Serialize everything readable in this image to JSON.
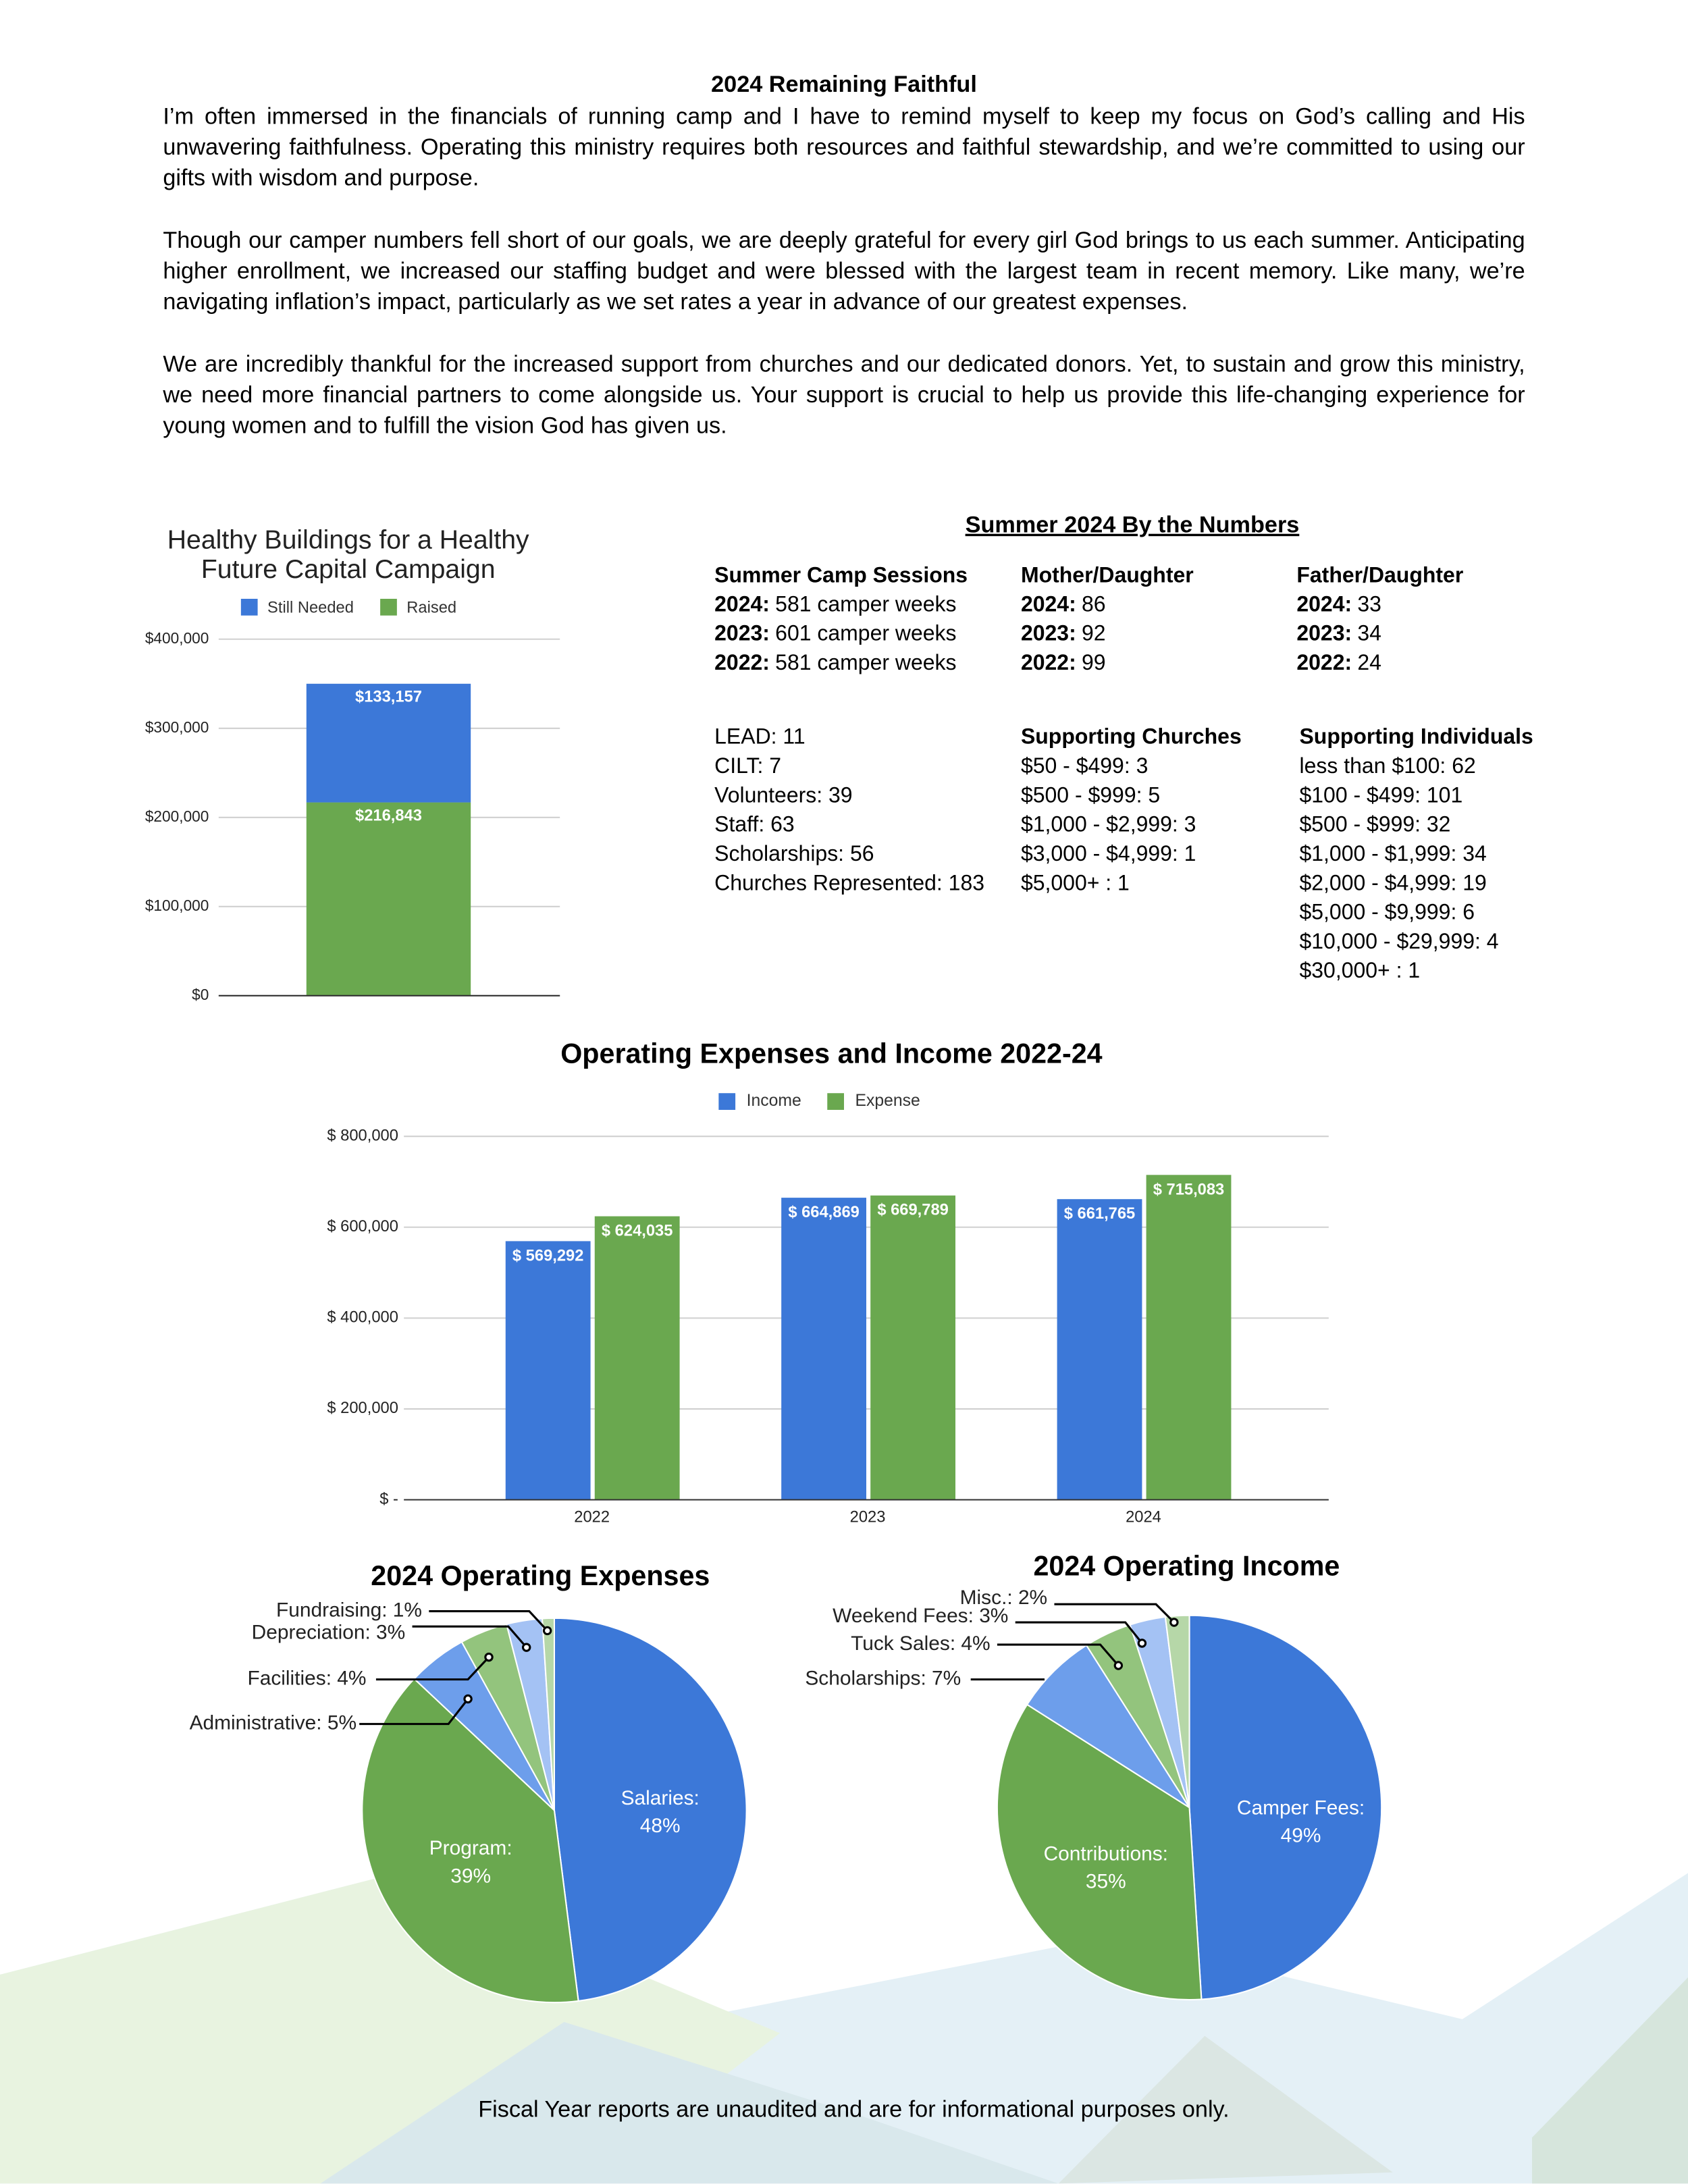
{
  "title": "2024 Remaining Faithful",
  "paragraphs": [
    "I’m often immersed in the financials of running camp and I have to remind myself to keep my focus on God’s calling and His unwavering faithfulness. Operating this ministry requires both resources and faithful stewardship, and we’re committed to using our gifts with wisdom and purpose.",
    "Though our camper numbers fell short of our goals, we are deeply grateful for every girl God brings to us each summer. Anticipating higher enrollment, we increased our staffing budget and were blessed with the largest team in recent memory. Like many, we’re navigating inflation’s impact, particularly as we set rates a year in advance of our greatest expenses.",
    "We are incredibly thankful for the increased support from churches and our dedicated donors. Yet, to sustain and grow this ministry, we need more financial partners to come alongside us. Your support is crucial to help us provide this life-changing experience for young women and to fulfill the vision God has given us."
  ],
  "numbers": {
    "title": "Summer 2024 By the Numbers",
    "columns": [
      {
        "heading": "Summer Camp Sessions",
        "rows": [
          {
            "label": "2024:",
            "text": "581 camper weeks"
          },
          {
            "label": "2023:",
            "text": "601 camper weeks"
          },
          {
            "label": "2022:",
            "text": "581 camper weeks"
          }
        ]
      },
      {
        "heading": "Mother/Daughter",
        "rows": [
          {
            "label": "2024:",
            "text": "86"
          },
          {
            "label": "2023:",
            "text": "92"
          },
          {
            "label": "2022:",
            "text": "99"
          }
        ]
      },
      {
        "heading": "Father/Daughter",
        "rows": [
          {
            "label": "2024:",
            "text": "33"
          },
          {
            "label": "2023:",
            "text": "34"
          },
          {
            "label": "2022:",
            "text": "24"
          }
        ]
      }
    ],
    "lists": [
      {
        "rows": [
          "LEAD: 11",
          "CILT: 7",
          "Volunteers: 39",
          "Staff: 63",
          "Scholarships: 56",
          "Churches Represented: 183"
        ]
      },
      {
        "heading": "Supporting Churches",
        "rows": [
          "$50 - $499: 3",
          "$500 - $999: 5",
          "$1,000 - $2,999: 3",
          "$3,000 - $4,999: 1",
          "$5,000+ : 1"
        ]
      },
      {
        "heading": "Supporting Individuals",
        "rows": [
          "less than $100: 62",
          "$100 - $499: 101",
          "$500 - $999: 32",
          "$1,000 - $1,999: 34",
          "$2,000 - $4,999: 19",
          "$5,000 - $9,999: 6",
          "$10,000 - $29,999: 4",
          "$30,000+ : 1"
        ]
      }
    ]
  },
  "chart_data": [
    {
      "type": "stacked-bar",
      "title": "Healthy Buildings for a Healthy Future Capital Campaign",
      "categories": [
        null
      ],
      "series": [
        {
          "name": "Still Needed",
          "color": "#3c78d8",
          "values": [
            133157
          ],
          "value_labels": [
            "$133,157"
          ]
        },
        {
          "name": "Raised",
          "color": "#6aa84f",
          "values": [
            216843
          ],
          "value_labels": [
            "$216,843"
          ]
        }
      ],
      "ylim": [
        0,
        400000
      ],
      "yticks": [
        {
          "value": 0,
          "label": "$0"
        },
        {
          "value": 100000,
          "label": "$100,000"
        },
        {
          "value": 200000,
          "label": "$200,000"
        },
        {
          "value": 300000,
          "label": "$300,000"
        },
        {
          "value": 400000,
          "label": "$400,000"
        }
      ],
      "grid": true,
      "legend": "top"
    },
    {
      "type": "bar",
      "title": "Operating Expenses and Income 2022-24",
      "categories": [
        "2022",
        "2023",
        "2024"
      ],
      "series": [
        {
          "name": "Income",
          "color": "#3c78d8",
          "values": [
            569292,
            664869,
            661765
          ],
          "value_labels": [
            "$ 569,292",
            "$ 664,869",
            "$ 661,765"
          ]
        },
        {
          "name": "Expense",
          "color": "#6aa84f",
          "values": [
            624035,
            669789,
            715083
          ],
          "value_labels": [
            "$ 624,035",
            "$ 669,789",
            "$ 715,083"
          ]
        }
      ],
      "ylim": [
        0,
        800000
      ],
      "yticks": [
        {
          "value": 0,
          "label": "$ -"
        },
        {
          "value": 200000,
          "label": "$ 200,000"
        },
        {
          "value": 400000,
          "label": "$ 400,000"
        },
        {
          "value": 600000,
          "label": "$ 600,000"
        },
        {
          "value": 800000,
          "label": "$ 800,000"
        }
      ],
      "grid": true,
      "legend": "top"
    },
    {
      "type": "pie",
      "title": "2024 Operating Expenses",
      "categories": [
        "Salaries:",
        "Program:",
        "Administrative:",
        "Facilities:",
        "Depreciation:",
        "Fundraising:"
      ],
      "values": [
        48,
        39,
        5,
        4,
        3,
        1
      ],
      "value_labels": [
        "48%",
        "39%",
        "5%",
        "4%",
        "3%",
        "1%"
      ],
      "colors": [
        "#3c78d8",
        "#6aa84f",
        "#6d9eeb",
        "#93c47d",
        "#a4c2f4",
        "#b6d7a8"
      ]
    },
    {
      "type": "pie",
      "title": "2024 Operating Income",
      "categories": [
        "Camper Fees:",
        "Contributions:",
        "Scholarships:",
        "Tuck Sales:",
        "Weekend Fees:",
        "Misc.:"
      ],
      "values": [
        49,
        35,
        7,
        4,
        3,
        2
      ],
      "value_labels": [
        "49%",
        "35%",
        "7%",
        "4%",
        "3%",
        "2%"
      ],
      "colors": [
        "#3c78d8",
        "#6aa84f",
        "#6d9eeb",
        "#93c47d",
        "#a4c2f4",
        "#b6d7a8"
      ]
    }
  ],
  "footer": "Fiscal Year reports are unaudited and are for informational purposes only."
}
